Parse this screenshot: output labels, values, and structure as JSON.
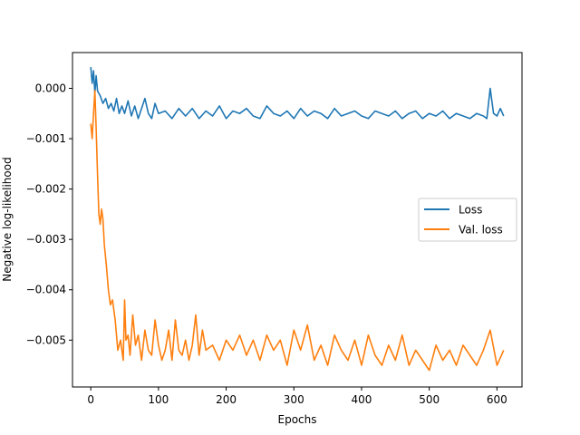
{
  "chart_data": {
    "type": "line",
    "title": "",
    "xlabel": "Epochs",
    "ylabel": "Negative log-likelihood",
    "xlim": [
      -27,
      637
    ],
    "ylim": [
      -0.00593,
      0.00071
    ],
    "xticks": [
      0,
      100,
      200,
      300,
      400,
      500,
      600
    ],
    "xtick_labels": [
      "0",
      "100",
      "200",
      "300",
      "400",
      "500",
      "600"
    ],
    "yticks": [
      0.0,
      -0.001,
      -0.002,
      -0.003,
      -0.004,
      -0.005
    ],
    "ytick_labels": [
      "0.000",
      "−0.001",
      "−0.002",
      "−0.003",
      "−0.004",
      "−0.005"
    ],
    "grid": false,
    "legend": "center-right",
    "series": [
      {
        "name": "Loss",
        "color": "#1f77b4",
        "x": [
          0,
          2,
          4,
          6,
          8,
          10,
          14,
          18,
          22,
          26,
          30,
          34,
          38,
          42,
          46,
          50,
          55,
          60,
          65,
          70,
          75,
          80,
          85,
          90,
          95,
          100,
          110,
          120,
          130,
          140,
          150,
          160,
          170,
          180,
          190,
          200,
          210,
          220,
          230,
          240,
          250,
          260,
          270,
          280,
          290,
          300,
          310,
          320,
          330,
          340,
          350,
          360,
          370,
          380,
          390,
          400,
          410,
          420,
          430,
          440,
          450,
          460,
          470,
          480,
          490,
          500,
          510,
          520,
          530,
          540,
          550,
          560,
          570,
          580,
          585,
          590,
          595,
          600,
          605,
          610
        ],
        "values": [
          0.00042,
          0.0001,
          0.00035,
          -0.0001,
          0.00025,
          -5e-05,
          -0.00015,
          -0.0003,
          -0.0002,
          -0.0004,
          -0.0003,
          -0.00045,
          -0.0002,
          -0.0005,
          -0.00035,
          -0.0005,
          -0.00025,
          -0.00055,
          -0.00035,
          -0.0006,
          -0.0004,
          -0.0002,
          -0.0005,
          -0.0006,
          -0.0003,
          -0.0005,
          -0.00045,
          -0.0006,
          -0.0004,
          -0.00055,
          -0.0004,
          -0.0006,
          -0.00045,
          -0.00055,
          -0.00035,
          -0.0006,
          -0.00045,
          -0.0005,
          -0.0004,
          -0.00055,
          -0.0006,
          -0.00035,
          -0.0005,
          -0.00055,
          -0.00045,
          -0.0006,
          -0.0004,
          -0.00055,
          -0.00045,
          -0.0005,
          -0.0006,
          -0.0004,
          -0.00055,
          -0.0005,
          -0.00045,
          -0.00055,
          -0.0006,
          -0.00045,
          -0.0005,
          -0.00055,
          -0.00045,
          -0.0006,
          -0.0005,
          -0.00045,
          -0.0006,
          -0.0005,
          -0.00055,
          -0.00045,
          -0.0006,
          -0.0005,
          -0.00055,
          -0.0006,
          -0.0005,
          -0.00055,
          -0.0006,
          0.0,
          -0.0005,
          -0.00055,
          -0.0004,
          -0.00055
        ]
      },
      {
        "name": "Val. loss",
        "color": "#ff7f0e",
        "x": [
          0,
          2,
          4,
          6,
          8,
          10,
          12,
          14,
          16,
          18,
          20,
          23,
          26,
          29,
          32,
          36,
          40,
          44,
          48,
          50,
          52,
          55,
          58,
          62,
          66,
          70,
          75,
          80,
          85,
          90,
          95,
          100,
          105,
          110,
          115,
          120,
          125,
          130,
          135,
          140,
          145,
          150,
          155,
          160,
          165,
          170,
          180,
          190,
          200,
          210,
          220,
          230,
          240,
          250,
          260,
          270,
          280,
          290,
          300,
          310,
          320,
          330,
          340,
          350,
          360,
          370,
          380,
          390,
          400,
          410,
          420,
          430,
          440,
          450,
          460,
          470,
          480,
          490,
          500,
          510,
          520,
          530,
          540,
          550,
          560,
          570,
          580,
          590,
          600,
          610
        ],
        "values": [
          -0.0007,
          -0.001,
          -0.0005,
          -5e-05,
          -0.0008,
          -0.0017,
          -0.0025,
          -0.0027,
          -0.0024,
          -0.0026,
          -0.0031,
          -0.0035,
          -0.004,
          -0.0043,
          -0.0042,
          -0.0046,
          -0.0052,
          -0.005,
          -0.0054,
          -0.0042,
          -0.005,
          -0.0049,
          -0.0053,
          -0.0045,
          -0.0051,
          -0.0049,
          -0.0054,
          -0.0048,
          -0.0052,
          -0.0053,
          -0.0046,
          -0.0051,
          -0.0054,
          -0.0052,
          -0.0048,
          -0.0054,
          -0.0046,
          -0.0052,
          -0.0053,
          -0.005,
          -0.0054,
          -0.0051,
          -0.0045,
          -0.0053,
          -0.0048,
          -0.0052,
          -0.0051,
          -0.0054,
          -0.005,
          -0.0052,
          -0.0049,
          -0.0053,
          -0.005,
          -0.0054,
          -0.0049,
          -0.0052,
          -0.005,
          -0.0055,
          -0.0048,
          -0.0052,
          -0.0047,
          -0.0054,
          -0.0051,
          -0.0055,
          -0.0049,
          -0.0052,
          -0.0054,
          -0.005,
          -0.0055,
          -0.0049,
          -0.0053,
          -0.0055,
          -0.0051,
          -0.0054,
          -0.0049,
          -0.0055,
          -0.0052,
          -0.0054,
          -0.0056,
          -0.0051,
          -0.0054,
          -0.0052,
          -0.0055,
          -0.0051,
          -0.0053,
          -0.0055,
          -0.0052,
          -0.0048,
          -0.0055,
          -0.0052
        ]
      }
    ]
  }
}
